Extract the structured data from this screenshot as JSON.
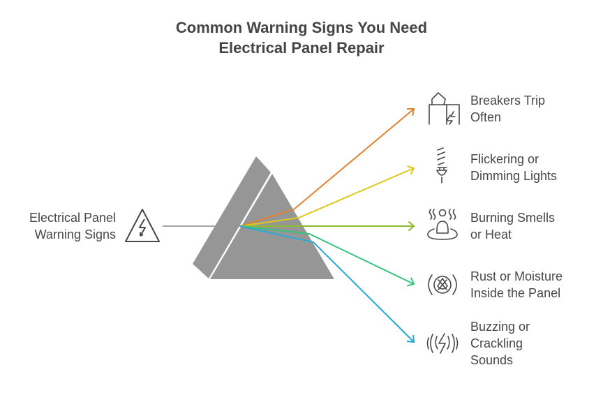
{
  "title": {
    "line1": "Common Warning Signs You Need",
    "line2": "Electrical Panel Repair"
  },
  "source": {
    "line1": "Electrical Panel",
    "line2": "Warning Signs",
    "icon": "warning-triangle-lightning-icon"
  },
  "colors": {
    "prism": "#969696",
    "input_ray": "#a6a6a6",
    "text": "#474747"
  },
  "outputs": [
    {
      "line1": "Breakers Trip",
      "line2": "Often",
      "line3": "",
      "color": "#E0822F",
      "icon": "house-broken-lightning-icon"
    },
    {
      "line1": "Flickering or",
      "line2": "Dimming Lights",
      "line3": "",
      "color": "#DEC81E",
      "icon": "light-bulb-icon"
    },
    {
      "line1": "Burning Smells",
      "line2": "or Heat",
      "line3": "",
      "color": "#8CBB2F",
      "icon": "person-heat-icon"
    },
    {
      "line1": "Rust or Moisture",
      "line2": "Inside the Panel",
      "line3": "",
      "color": "#36C47A",
      "icon": "rust-moisture-icon"
    },
    {
      "line1": "Buzzing or",
      "line2": "Crackling",
      "line3": "Sounds",
      "color": "#29A8D9",
      "icon": "buzzing-lightning-icon"
    }
  ]
}
